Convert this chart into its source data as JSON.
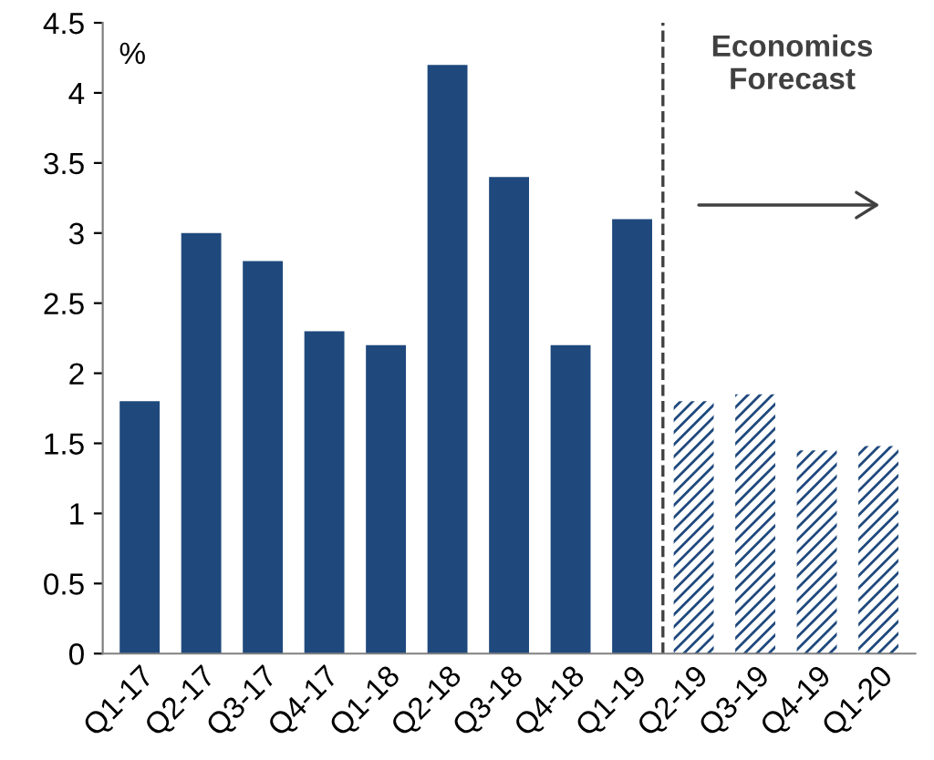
{
  "chart_data": {
    "type": "bar",
    "ylabel": "%",
    "categories": [
      "Q1-17",
      "Q2-17",
      "Q3-17",
      "Q4-17",
      "Q1-18",
      "Q2-18",
      "Q3-18",
      "Q4-18",
      "Q1-19",
      "Q2-19",
      "Q3-19",
      "Q4-19",
      "Q1-20"
    ],
    "series": [
      {
        "color": "#1f497d",
        "values": [
          1.8,
          3.0,
          2.8,
          2.3,
          2.2,
          4.2,
          3.4,
          2.2,
          3.1,
          null,
          null,
          null,
          null
        ]
      },
      {
        "color": "#1f497d",
        "values": [
          null,
          null,
          null,
          null,
          null,
          null,
          null,
          null,
          null,
          1.8,
          1.85,
          1.45,
          1.48
        ]
      }
    ],
    "ylim": [
      0,
      4.5
    ],
    "yticks": [
      0,
      0.5,
      1,
      1.5,
      2,
      2.5,
      3,
      3.5,
      4,
      4.5
    ],
    "annotations": [
      "Economics\nForecast"
    ],
    "grid": false,
    "legend": false
  }
}
